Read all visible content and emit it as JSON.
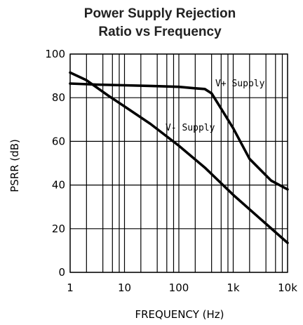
{
  "chart_data": {
    "type": "line",
    "title_lines": [
      "Power Supply Rejection",
      "Ratio vs Frequency"
    ],
    "xlabel": "FREQUENCY (Hz)",
    "ylabel": "PSRR (dB)",
    "x_scale": "log",
    "xlim": [
      1,
      10000
    ],
    "ylim": [
      0,
      100
    ],
    "x_ticks": [
      {
        "value": 1,
        "label": "1"
      },
      {
        "value": 10,
        "label": "10"
      },
      {
        "value": 100,
        "label": "100"
      },
      {
        "value": 1000,
        "label": "1k"
      },
      {
        "value": 10000,
        "label": "10k"
      }
    ],
    "y_ticks": [
      {
        "value": 0,
        "label": "0"
      },
      {
        "value": 20,
        "label": "20"
      },
      {
        "value": 40,
        "label": "40"
      },
      {
        "value": 60,
        "label": "60"
      },
      {
        "value": 80,
        "label": "80"
      },
      {
        "value": 100,
        "label": "100"
      }
    ],
    "grid": true,
    "series": [
      {
        "name": "V+ Supply",
        "x": [
          1,
          3,
          10,
          30,
          100,
          200,
          300,
          400,
          600,
          1000,
          2000,
          5000,
          10000
        ],
        "y": [
          86.5,
          86,
          85.7,
          85.4,
          85,
          84.3,
          84,
          82,
          75,
          66,
          52,
          42,
          38
        ]
      },
      {
        "name": "V- Supply",
        "x": [
          1,
          2,
          5,
          10,
          30,
          100,
          300,
          1000,
          3000,
          10000
        ],
        "y": [
          91.5,
          88,
          81,
          76,
          68,
          58,
          48,
          35.5,
          25,
          13.5
        ]
      }
    ]
  }
}
